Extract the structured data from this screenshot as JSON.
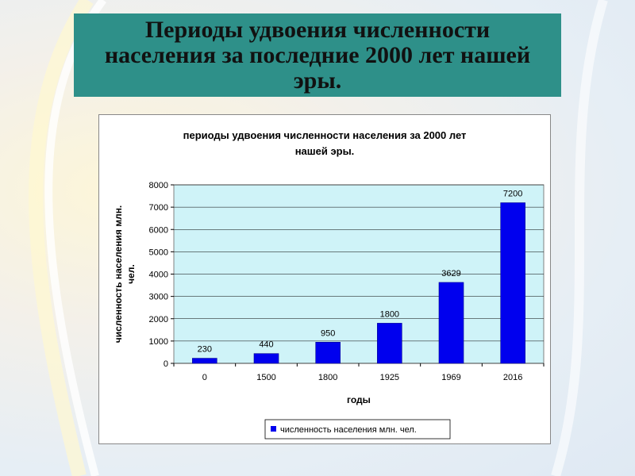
{
  "slide": {
    "title": "Периоды удвоения численности населения за последние 2000 лет нашей эры."
  },
  "chart_data": {
    "type": "bar",
    "title_lines": [
      "периоды удвоения численности населения за 2000 лет",
      "нашей эры."
    ],
    "xlabel": "годы",
    "ylabel_lines": [
      "численность населения млн.",
      "чел."
    ],
    "categories": [
      "0",
      "1500",
      "1800",
      "1925",
      "1969",
      "2016"
    ],
    "series": [
      {
        "name": "численность населения млн. чел.",
        "values": [
          230,
          440,
          950,
          1800,
          3629,
          7200
        ]
      }
    ],
    "data_labels": [
      "230",
      "440",
      "950",
      "1800",
      "3629",
      "7200"
    ],
    "ylim": [
      0,
      8000
    ],
    "yticks": [
      0,
      1000,
      2000,
      3000,
      4000,
      5000,
      6000,
      7000,
      8000
    ],
    "grid": true,
    "legend_position": "bottom",
    "colors": {
      "bar": "#0000ee",
      "plot_bg": "#cff3f8",
      "slide_title_bg": "#2e9089"
    }
  }
}
